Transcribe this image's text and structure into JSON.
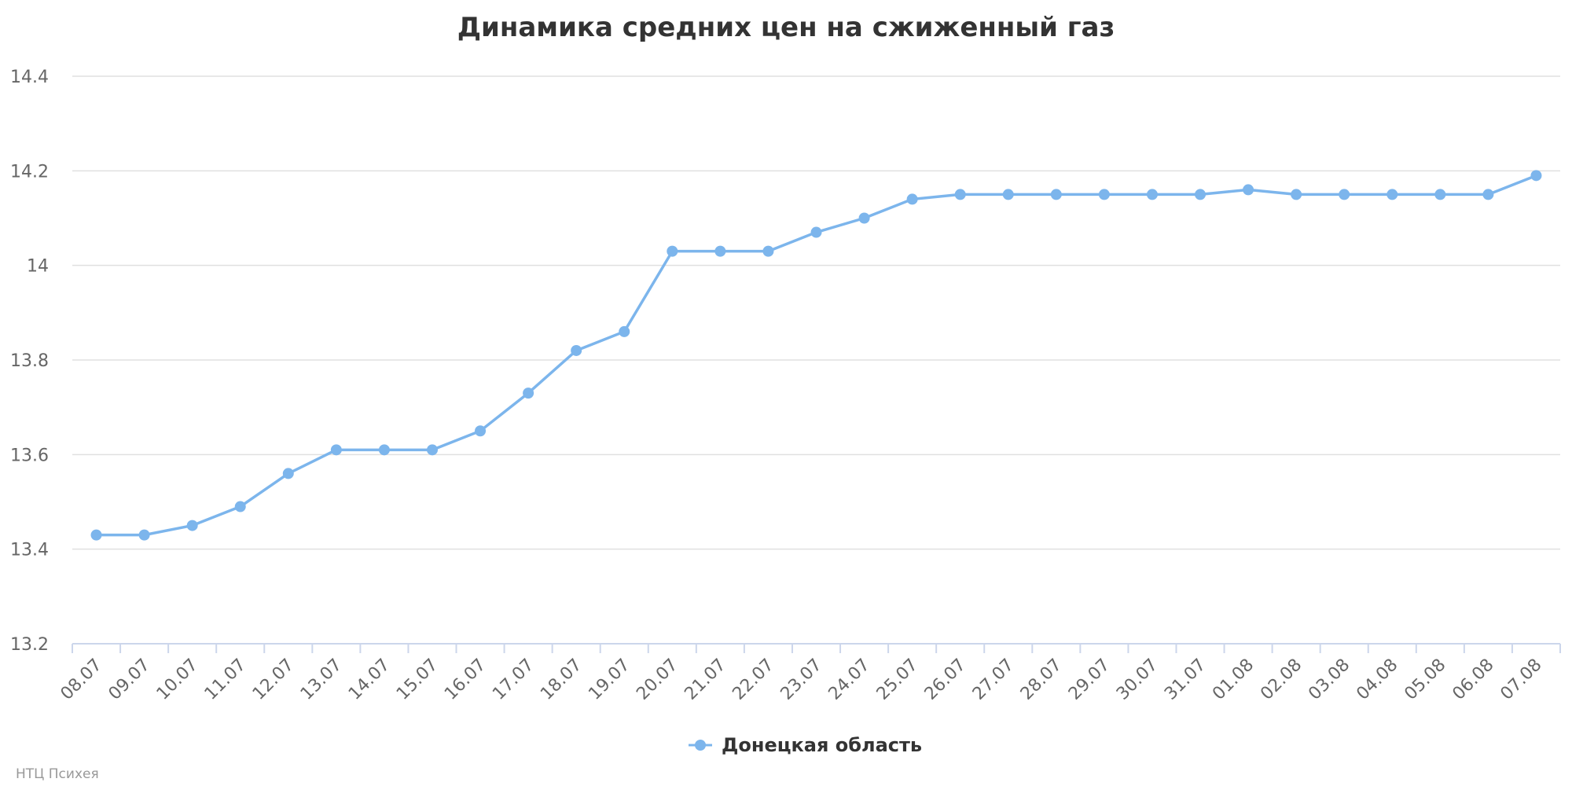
{
  "chart_data": {
    "type": "line",
    "title": "Динамика средних цен на сжиженный газ",
    "xlabel": "",
    "ylabel": "",
    "ylim": [
      13.2,
      14.4
    ],
    "yticks": [
      "13.2",
      "13.4",
      "13.6",
      "13.8",
      "14",
      "14.2",
      "14.4"
    ],
    "grid": true,
    "legend_position": "bottom-center",
    "categories": [
      "08.07",
      "09.07",
      "10.07",
      "11.07",
      "12.07",
      "13.07",
      "14.07",
      "15.07",
      "16.07",
      "17.07",
      "18.07",
      "19.07",
      "20.07",
      "21.07",
      "22.07",
      "23.07",
      "24.07",
      "25.07",
      "26.07",
      "27.07",
      "28.07",
      "29.07",
      "30.07",
      "31.07",
      "01.08",
      "02.08",
      "03.08",
      "04.08",
      "05.08",
      "06.08",
      "07.08"
    ],
    "series": [
      {
        "name": "Донецкая область",
        "color": "#7cb5ec",
        "values": [
          13.43,
          13.43,
          13.45,
          13.49,
          13.56,
          13.61,
          13.61,
          13.61,
          13.65,
          13.73,
          13.82,
          13.86,
          14.03,
          14.03,
          14.03,
          14.07,
          14.1,
          14.14,
          14.15,
          14.15,
          14.15,
          14.15,
          14.15,
          14.15,
          14.16,
          14.15,
          14.15,
          14.15,
          14.15,
          14.15,
          14.19
        ]
      }
    ]
  },
  "credit": "НТЦ Психея"
}
